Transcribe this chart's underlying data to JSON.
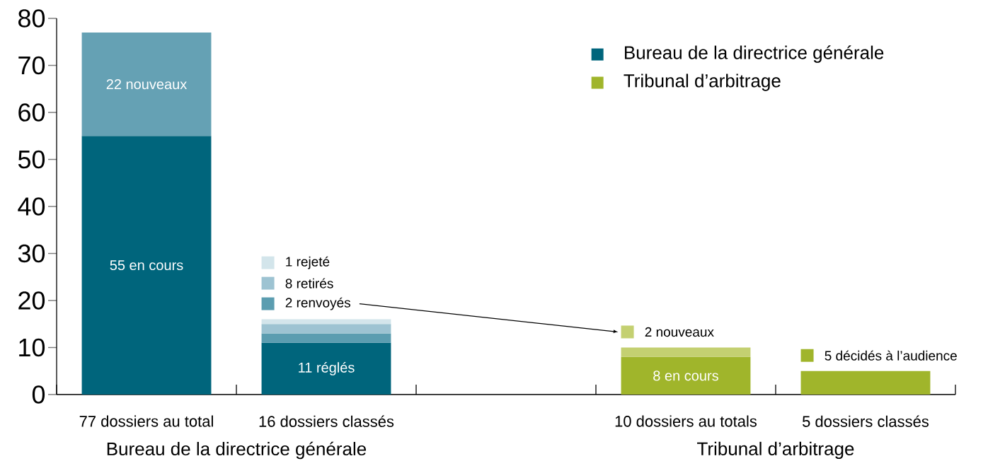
{
  "chart_data": {
    "type": "bar",
    "stacked": true,
    "categories": [
      "77 dossiers au total",
      "16 dossiers classés",
      null,
      "10 dossiers au totals",
      "5 dossiers classés"
    ],
    "series": [
      {
        "name": "Bureau de la directrice générale",
        "color": "#00657c",
        "values": [
          55,
          11,
          null,
          null,
          null
        ],
        "value_labels": [
          "55 en cours",
          "11 réglés",
          null,
          null,
          null
        ]
      },
      {
        "color": "#65a1b4",
        "values": [
          22,
          null,
          null,
          null,
          null
        ],
        "value_labels": [
          "22 nouveaux",
          null,
          null,
          null,
          null
        ]
      },
      {
        "name": "2 renvoyés",
        "color": "#5b9db0",
        "values": [
          null,
          2,
          null,
          null,
          null
        ]
      },
      {
        "name": "8 retirés",
        "color": "#9dc3d2",
        "values": [
          null,
          2,
          null,
          null,
          null
        ]
      },
      {
        "name": "1 rejeté",
        "color": "#d3e5eb",
        "values": [
          null,
          1,
          null,
          null,
          null
        ]
      },
      {
        "name": "Tribunal d’arbitrage",
        "color": "#a0b52b",
        "values": [
          null,
          null,
          null,
          8,
          null
        ],
        "value_labels": [
          null,
          null,
          null,
          "8 en cours",
          null
        ]
      },
      {
        "name": "2 nouveaux",
        "color": "#c4d071",
        "values": [
          null,
          null,
          null,
          2,
          null
        ]
      },
      {
        "name": "5  décidés à l’audience",
        "color": "#a0b52b",
        "values": [
          null,
          null,
          null,
          null,
          5
        ]
      }
    ],
    "ylim": [
      0,
      80
    ],
    "yticks": [
      0,
      10,
      20,
      30,
      40,
      50,
      60,
      70,
      80
    ],
    "legend": "top right",
    "annotations": [
      "Bureau de la directrice générale",
      "Tribunal d’arbitrage"
    ]
  }
}
